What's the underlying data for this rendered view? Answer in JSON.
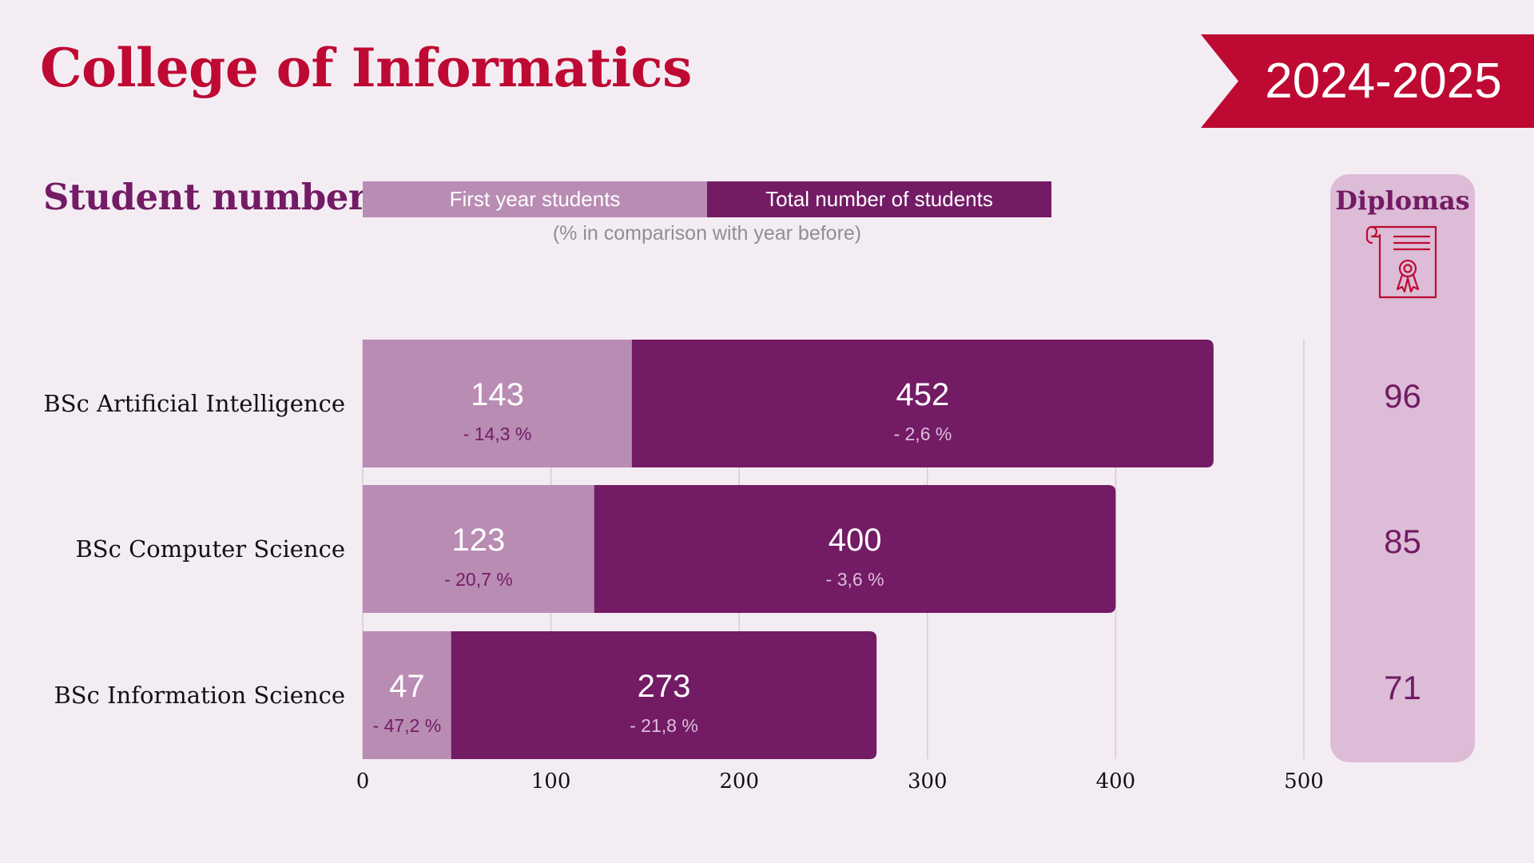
{
  "title": "College of Informatics",
  "year": "2024-2025",
  "section_heading": "Student numbers",
  "legend": {
    "first_year": "First year students",
    "total": "Total number of students",
    "note": "(% in comparison with year before)"
  },
  "diplomas": {
    "title": "Diplomas",
    "icon": "diploma-certificate-icon",
    "values": [
      "96",
      "85",
      "71"
    ]
  },
  "colors": {
    "background": "#f4ecf3",
    "title": "#be0a33",
    "heading": "#731b65",
    "first_year": "#b98cb4",
    "total": "#731b65",
    "panel": "#dcbcd6",
    "grid": "#d6cbd5",
    "first_year_pct_text": "#731b65",
    "total_pct_text": "#dcbedc",
    "label_text": "#111111"
  },
  "chart_data": {
    "type": "bar",
    "orientation": "horizontal",
    "stacking": "overlay",
    "categories": [
      "BSc Artificial Intelligence",
      "BSc Computer Science",
      "BSc Information Science"
    ],
    "series": [
      {
        "name": "First year students",
        "values": [
          143,
          123,
          47
        ],
        "labels": [
          "143",
          "123",
          "47"
        ],
        "change_labels": [
          "- 14,3 %",
          "- 20,7 %",
          "- 47,2 %"
        ]
      },
      {
        "name": "Total number of students",
        "values": [
          452,
          400,
          273
        ],
        "labels": [
          "452",
          "400",
          "273"
        ],
        "change_labels": [
          "- 2,6 %",
          "- 3,6 %",
          "- 21,8 %"
        ]
      }
    ],
    "xlim": [
      0,
      500
    ],
    "xticks": [
      0,
      100,
      200,
      300,
      400,
      500
    ],
    "xtick_labels": [
      "0",
      "100",
      "200",
      "300",
      "400",
      "500"
    ],
    "grid": true,
    "legend_position": "top",
    "legend_note": "(% in comparison with year before)"
  }
}
